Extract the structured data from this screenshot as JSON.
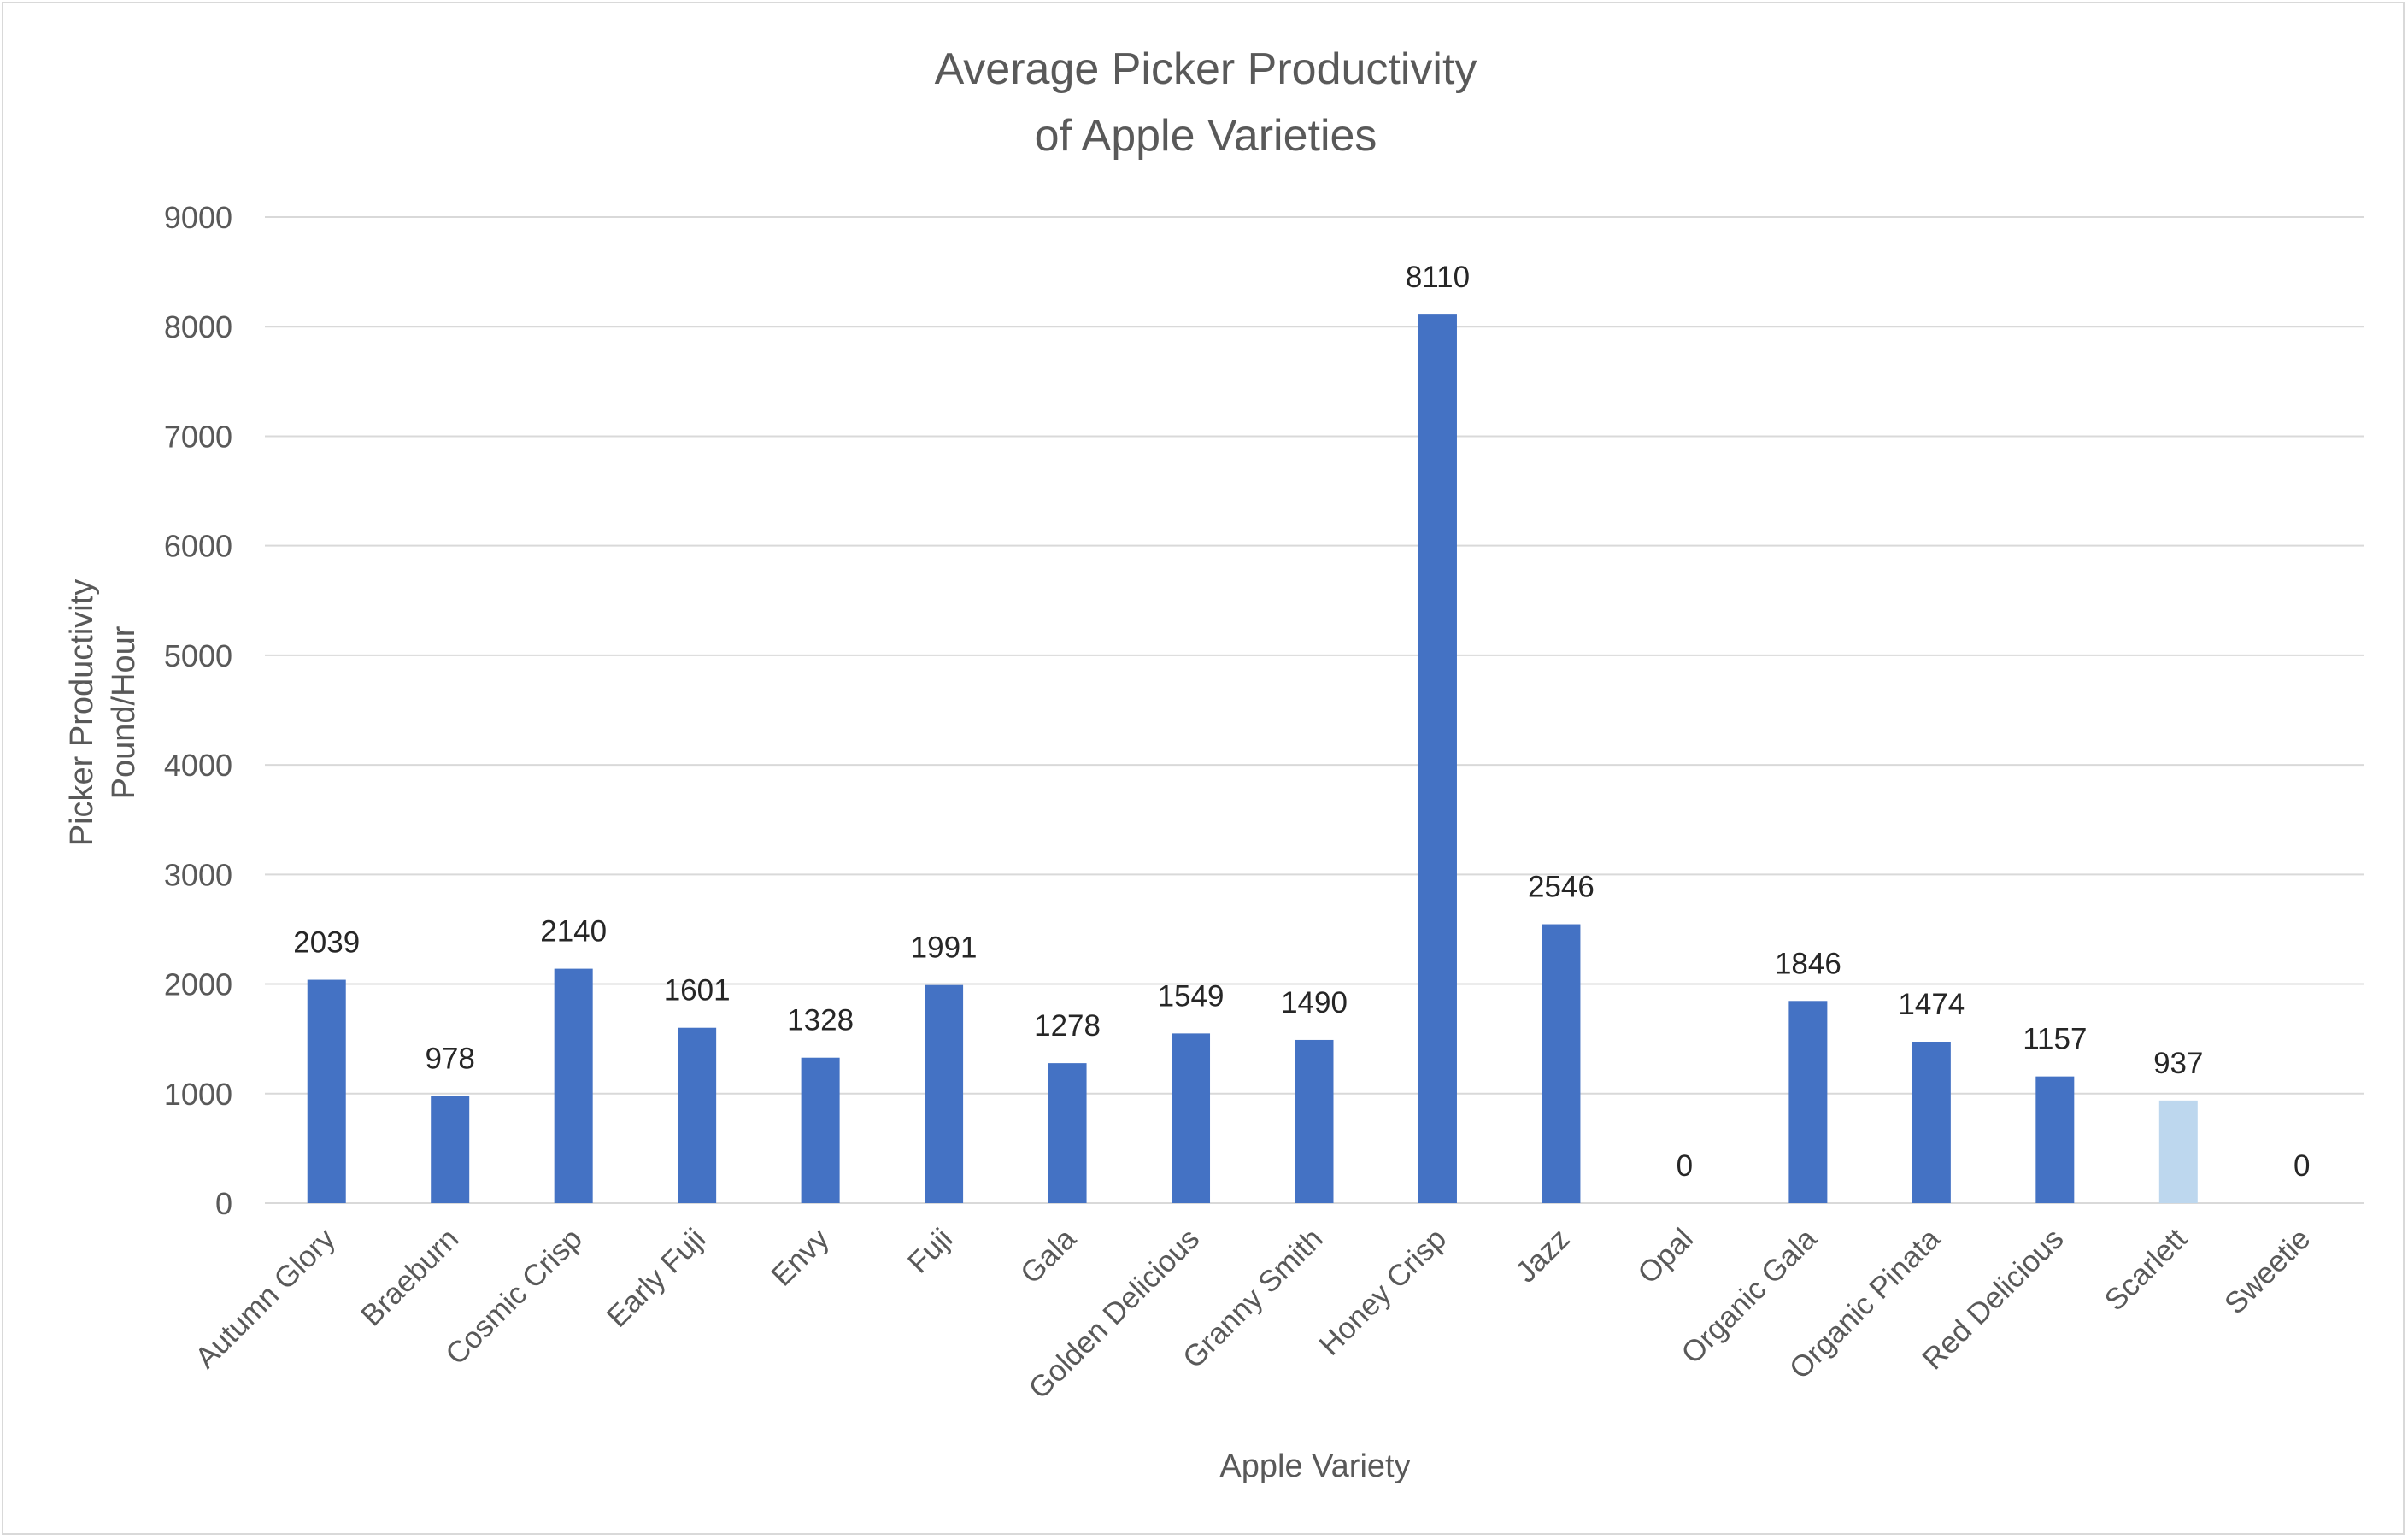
{
  "chart_data": {
    "type": "bar",
    "title": [
      "Average Picker Productivity",
      "of Apple Varieties"
    ],
    "xlabel": "Apple Variety",
    "ylabel": [
      "Picker Productivity",
      "Pound/Hour"
    ],
    "ylim": [
      0,
      9000
    ],
    "yticks": [
      0,
      1000,
      2000,
      3000,
      4000,
      5000,
      6000,
      7000,
      8000,
      9000
    ],
    "grid": true,
    "legend": "none",
    "categories": [
      "Autumn Glory",
      "Braeburn",
      "Cosmic Crisp",
      "Early Fuji",
      "Envy",
      "Fuji",
      "Gala",
      "Golden Delicious",
      "Granny Smith",
      "Honey Crisp",
      "Jazz",
      "Opal",
      "Organic Gala",
      "Organic Pinata",
      "Red Delicious",
      "Scarlett",
      "Sweetie"
    ],
    "values": [
      2039,
      978,
      2140,
      1601,
      1328,
      1991,
      1278,
      1549,
      1490,
      8110,
      2546,
      0,
      1846,
      1474,
      1157,
      937,
      0
    ],
    "bar_colors": [
      "#4472c4",
      "#4472c4",
      "#4472c4",
      "#4472c4",
      "#4472c4",
      "#4472c4",
      "#4472c4",
      "#4472c4",
      "#4472c4",
      "#4472c4",
      "#4472c4",
      "#4472c4",
      "#4472c4",
      "#4472c4",
      "#4472c4",
      "#bdd7ee",
      "#4472c4"
    ],
    "gridline_color": "#d9d9d9",
    "text_color": "#595959",
    "label_color": "#262626"
  }
}
